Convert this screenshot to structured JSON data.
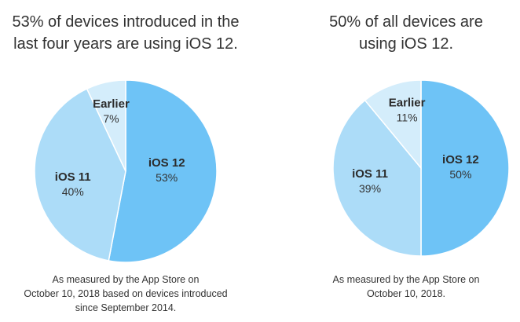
{
  "colors": {
    "ios12": "#6ec3f6",
    "ios11": "#acdcf8",
    "earlier": "#d4edfb"
  },
  "chart_data": [
    {
      "type": "pie",
      "title_lines": [
        "53% of devices introduced in the",
        "last four years are using iOS 12."
      ],
      "slices": [
        {
          "label": "iOS 12",
          "value": 53,
          "value_label": "53%"
        },
        {
          "label": "iOS 11",
          "value": 40,
          "value_label": "40%"
        },
        {
          "label": "Earlier",
          "value": 7,
          "value_label": "7%"
        }
      ],
      "note_lines": [
        "As measured by the App Store on",
        "October 10, 2018 based on devices introduced",
        "since September 2014."
      ]
    },
    {
      "type": "pie",
      "title_lines": [
        "50% of all devices are",
        "using iOS 12."
      ],
      "slices": [
        {
          "label": "iOS 12",
          "value": 50,
          "value_label": "50%"
        },
        {
          "label": "iOS 11",
          "value": 39,
          "value_label": "39%"
        },
        {
          "label": "Earlier",
          "value": 11,
          "value_label": "11%"
        }
      ],
      "note_lines": [
        "As measured by the App Store on",
        "October 10, 2018."
      ]
    }
  ]
}
